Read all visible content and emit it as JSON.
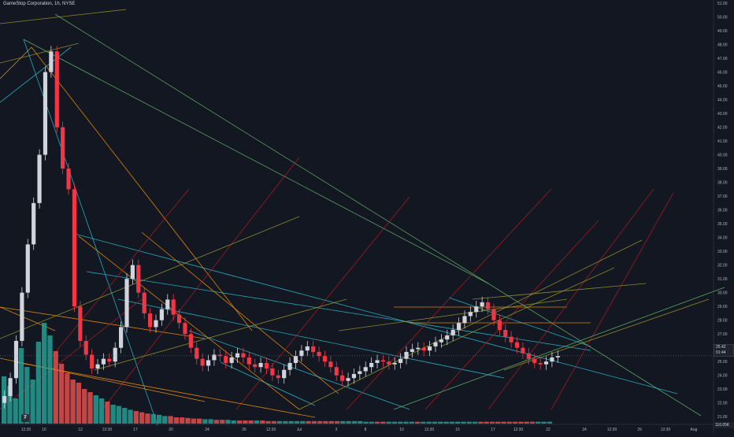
{
  "header": {
    "title": "GameStop Corporation, 1h, NYSE"
  },
  "badges": {
    "price": "25.42",
    "countdown": "01:44",
    "volume": "116.05K"
  },
  "logo": {
    "text": "₮"
  },
  "colors": {
    "background": "#131722",
    "up": "#d1d4dc",
    "down": "#f23645",
    "vol_up": "#26a69a",
    "vol_down": "#ef5350",
    "axis_text": "#b2b5be",
    "cyan": "#26c6da",
    "green": "#66bb6a",
    "orange": "#ff9800",
    "red": "#b71c1c",
    "olive": "#9e9d24"
  },
  "chart_data": {
    "type": "candlestick",
    "symbol": "GameStop Corporation",
    "interval": "1h",
    "exchange": "NYSE",
    "ylim": [
      20.5,
      51.0
    ],
    "y_ticks": [
      "51.00",
      "50.00",
      "49.00",
      "48.00",
      "47.00",
      "46.00",
      "45.00",
      "44.00",
      "43.00",
      "42.00",
      "41.00",
      "40.00",
      "39.00",
      "38.00",
      "37.00",
      "36.00",
      "35.00",
      "34.00",
      "33.00",
      "32.00",
      "31.00",
      "30.00",
      "29.00",
      "28.00",
      "27.00",
      "26.00",
      "25.00",
      "24.00",
      "23.00",
      "22.00",
      "21.00"
    ],
    "x_ticks": [
      "12:30",
      "10",
      "12",
      "12:30",
      "17",
      "20",
      "24",
      "26",
      "12:30",
      "Jul",
      "3",
      "8",
      "10",
      "12:30",
      "15",
      "17",
      "12:30",
      "22",
      "24",
      "12:30",
      "29",
      "12:30",
      "Aug"
    ],
    "close_series": [
      22.5,
      23.8,
      26.5,
      30.0,
      33.5,
      36.5,
      40.0,
      46.0,
      47.5,
      42.0,
      39.0,
      37.5,
      29.0,
      26.5,
      25.5,
      24.5,
      24.8,
      25.2,
      25.0,
      26.0,
      27.5,
      31.0,
      32.0,
      30.0,
      28.5,
      27.5,
      28.0,
      28.8,
      29.5,
      28.4,
      27.8,
      27.0,
      26.0,
      25.2,
      24.7,
      25.1,
      25.5,
      25.4,
      24.9,
      25.3,
      25.6,
      25.3,
      24.8,
      24.6,
      24.9,
      24.5,
      24.0,
      23.8,
      24.4,
      24.9,
      25.4,
      25.8,
      26.1,
      25.7,
      25.4,
      25.0,
      24.6,
      24.0,
      23.6,
      23.8,
      24.1,
      24.3,
      24.6,
      24.9,
      25.1,
      25.0,
      24.8,
      24.9,
      25.2,
      25.7,
      25.9,
      26.0,
      25.8,
      26.1,
      26.4,
      26.6,
      26.9,
      27.3,
      27.8,
      28.3,
      28.6,
      29.0,
      29.3,
      28.8,
      28.0,
      27.3,
      26.8,
      26.4,
      26.0,
      25.6,
      25.2,
      24.9,
      24.8,
      25.0,
      25.3,
      25.4
    ],
    "volume_series": [
      75,
      60,
      40,
      120,
      90,
      70,
      130,
      160,
      140,
      115,
      95,
      80,
      70,
      65,
      55,
      50,
      45,
      40,
      35,
      30,
      28,
      25,
      22,
      20,
      18,
      16,
      15,
      14,
      12,
      12,
      10,
      10,
      9,
      8,
      8,
      7,
      7,
      6,
      6,
      6,
      5,
      5,
      5,
      5,
      5,
      5,
      4,
      4,
      4,
      4,
      4,
      4,
      4,
      4,
      4,
      4,
      4,
      4,
      4,
      4,
      4,
      4,
      4,
      3,
      3,
      3,
      3,
      3,
      3,
      3,
      3,
      3,
      3,
      3,
      3,
      3,
      3,
      3,
      3,
      3,
      3,
      3,
      3,
      3,
      3,
      3,
      3,
      3,
      3,
      3,
      3,
      3,
      3,
      3,
      3,
      3
    ],
    "last_price": 25.42
  }
}
